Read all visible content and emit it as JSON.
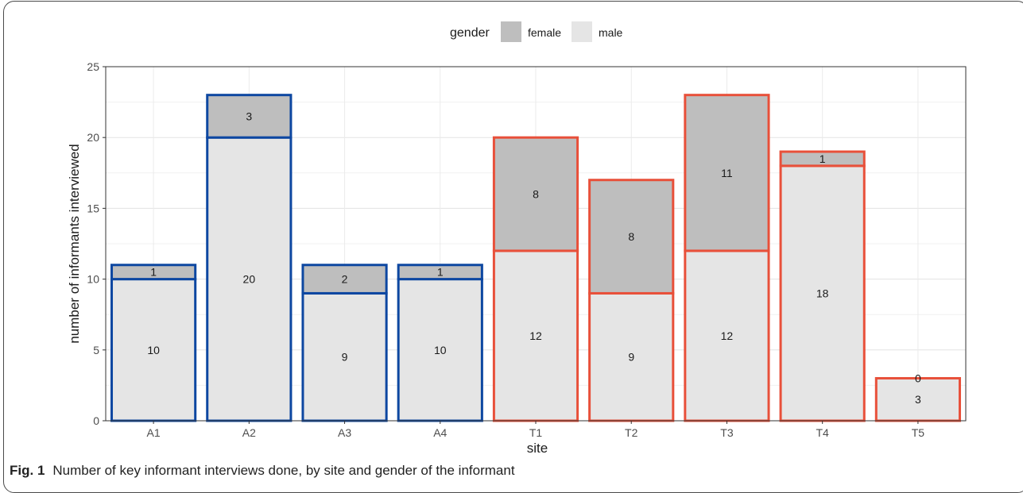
{
  "caption": {
    "label": "Fig. 1",
    "text": "Number of key informant interviews done, by site and gender of the informant"
  },
  "chart_data": {
    "type": "bar",
    "stacked": true,
    "title": "",
    "xlabel": "site",
    "ylabel": "number of informants interviewed",
    "ylim": [
      0,
      25
    ],
    "yticks": [
      0,
      5,
      10,
      15,
      20,
      25
    ],
    "grid": true,
    "legend": {
      "title": "gender",
      "position": "top",
      "entries": [
        {
          "name": "female",
          "color": "#bebebe"
        },
        {
          "name": "male",
          "color": "#e5e5e5"
        }
      ]
    },
    "categories": [
      "A1",
      "A2",
      "A3",
      "A4",
      "T1",
      "T2",
      "T3",
      "T4",
      "T5"
    ],
    "outline_colors": [
      "#0d47a1",
      "#0d47a1",
      "#0d47a1",
      "#0d47a1",
      "#e8503a",
      "#e8503a",
      "#e8503a",
      "#e8503a",
      "#e8503a"
    ],
    "series": [
      {
        "name": "male",
        "values": [
          10,
          20,
          9,
          10,
          12,
          9,
          12,
          18,
          3
        ],
        "color": "#e5e5e5"
      },
      {
        "name": "female",
        "values": [
          1,
          3,
          2,
          1,
          8,
          8,
          11,
          1,
          0
        ],
        "color": "#bebebe"
      }
    ]
  }
}
